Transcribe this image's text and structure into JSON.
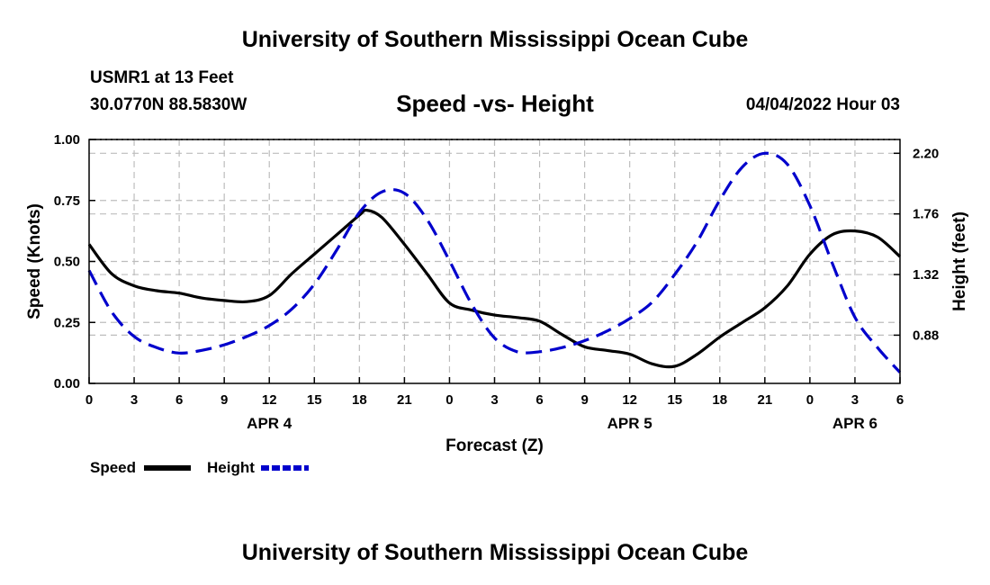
{
  "header": {
    "title": "University of Southern Mississippi Ocean Cube",
    "station": "USMR1 at 13 Feet",
    "coords": "30.0770N  88.5830W",
    "datetime": "04/04/2022 Hour 03"
  },
  "footer": {
    "title": "University of Southern Mississippi Ocean Cube"
  },
  "chart_data": {
    "type": "line",
    "title": "Speed -vs- Height",
    "xlabel": "Forecast (Z)",
    "ylabel": "Speed (Knots)",
    "y2label": "Height (feet)",
    "xlim": [
      0,
      54
    ],
    "ylim": [
      0,
      1
    ],
    "y2lim": [
      0.53,
      2.3
    ],
    "x_ticks": [
      0,
      3,
      6,
      9,
      12,
      15,
      18,
      21,
      24,
      27,
      30,
      33,
      36,
      39,
      42,
      45,
      48,
      51,
      54
    ],
    "x_tick_labels": [
      "0",
      "3",
      "6",
      "9",
      "12",
      "15",
      "18",
      "21",
      "0",
      "3",
      "6",
      "9",
      "12",
      "15",
      "18",
      "21",
      "0",
      "3",
      "6"
    ],
    "y_ticks": [
      0,
      0.25,
      0.5,
      0.75,
      1.0
    ],
    "y_tick_labels": [
      "0.00",
      "0.25",
      "0.50",
      "0.75",
      "1.00"
    ],
    "y2_ticks": [
      0.88,
      1.32,
      1.76,
      2.2
    ],
    "y2_tick_labels": [
      "0.88",
      "1.32",
      "1.76",
      "2.20"
    ],
    "date_labels": [
      {
        "x": 12,
        "label": "APR 4"
      },
      {
        "x": 36,
        "label": "APR 5"
      },
      {
        "x": 51,
        "label": "APR 6"
      }
    ],
    "legend": {
      "placement": "bottom-left",
      "entries": [
        {
          "name": "Speed",
          "color": "#000000",
          "style": "solid"
        },
        {
          "name": "Height",
          "color": "#0000cc",
          "style": "dashed"
        }
      ]
    },
    "series": [
      {
        "name": "Speed",
        "axis": "left",
        "color": "#000000",
        "style": "solid",
        "x": [
          0,
          1.5,
          3,
          4.5,
          6,
          7.5,
          9,
          10.5,
          12,
          13.5,
          15,
          16.5,
          18,
          18.5,
          19.5,
          21,
          22.5,
          24,
          25.5,
          27,
          28.5,
          30,
          31.5,
          33,
          34.5,
          36,
          37.5,
          39,
          40.5,
          42,
          43.5,
          45,
          46.5,
          48,
          49.5,
          51,
          52.5,
          54
        ],
        "y": [
          0.57,
          0.45,
          0.4,
          0.38,
          0.37,
          0.35,
          0.34,
          0.335,
          0.36,
          0.45,
          0.53,
          0.61,
          0.69,
          0.71,
          0.68,
          0.57,
          0.45,
          0.33,
          0.3,
          0.28,
          0.27,
          0.255,
          0.2,
          0.15,
          0.135,
          0.12,
          0.08,
          0.07,
          0.12,
          0.19,
          0.25,
          0.31,
          0.4,
          0.53,
          0.61,
          0.625,
          0.6,
          0.52
        ]
      },
      {
        "name": "Height",
        "axis": "right",
        "color": "#0000cc",
        "style": "dashed",
        "x": [
          0,
          1.5,
          3,
          4.5,
          6,
          7.5,
          9,
          10.5,
          12,
          13.5,
          15,
          16.5,
          18,
          19.5,
          21,
          22.5,
          24,
          25.5,
          27,
          28.5,
          30,
          31.5,
          33,
          34.5,
          36,
          37.5,
          39,
          40.5,
          42,
          43.5,
          45,
          46.5,
          48,
          49.5,
          51,
          52.5,
          54
        ],
        "y": [
          1.35,
          1.05,
          0.87,
          0.79,
          0.75,
          0.77,
          0.81,
          0.87,
          0.95,
          1.07,
          1.25,
          1.5,
          1.77,
          1.92,
          1.91,
          1.72,
          1.42,
          1.1,
          0.86,
          0.76,
          0.76,
          0.79,
          0.84,
          0.91,
          1.0,
          1.12,
          1.32,
          1.56,
          1.86,
          2.1,
          2.2,
          2.12,
          1.82,
          1.4,
          1.01,
          0.79,
          0.61
        ]
      }
    ]
  }
}
